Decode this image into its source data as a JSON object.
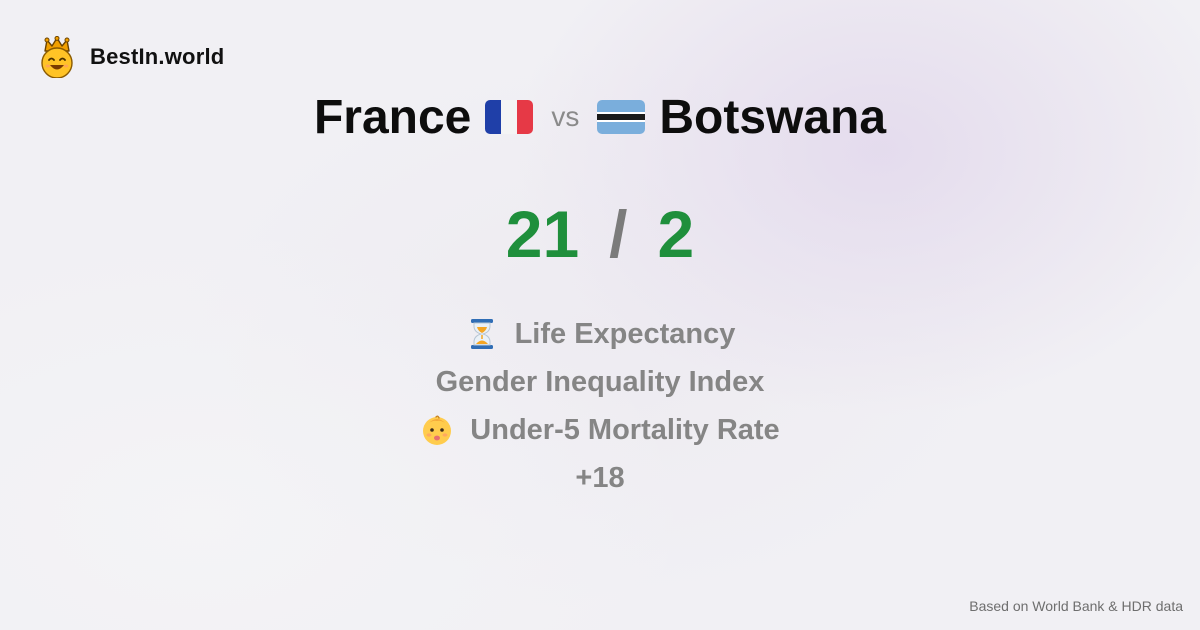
{
  "brand": {
    "name": "BestIn.world",
    "logo_icon": "crown-smiley-icon"
  },
  "comparison": {
    "left": {
      "country": "France",
      "flag_icon": "france-flag-icon"
    },
    "vs_label": "vs",
    "right": {
      "country": "Botswana",
      "flag_icon": "botswana-flag-icon"
    }
  },
  "score": {
    "left": "21",
    "separator": "/",
    "right": "2"
  },
  "metrics": [
    {
      "icon": "hourglass-icon",
      "label": "Life Expectancy"
    },
    {
      "icon": "",
      "label": "Gender Inequality Index"
    },
    {
      "icon": "baby-icon",
      "label": "Under-5 Mortality Rate"
    }
  ],
  "more_label": "+18",
  "footer": {
    "source": "Based on World Bank & HDR data"
  },
  "colors": {
    "score": "#1f8f3c",
    "muted": "#858585",
    "background": "#f1f0f4"
  }
}
